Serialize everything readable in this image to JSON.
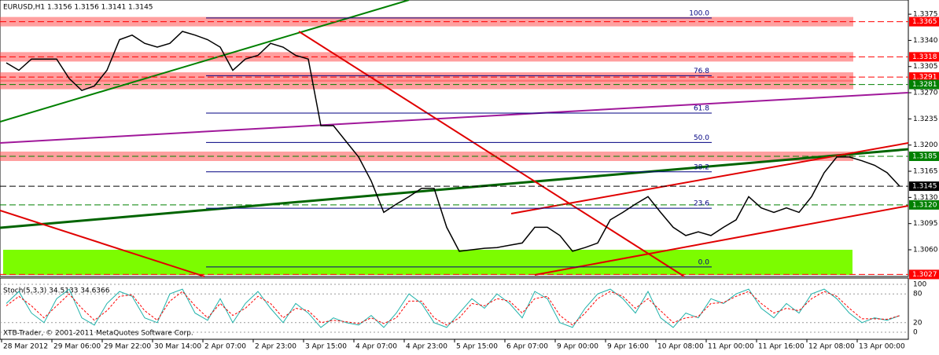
{
  "chart_data": {
    "type": "line",
    "title": "EURUSD,H1  1.3156 1.3156 1.3141 1.3145",
    "copyright": "XTB-Trader, © 2001-2011 MetaQuotes Software Corp.",
    "x_labels": [
      "28 Mar 2012",
      "29 Mar 06:00",
      "29 Mar 22:00",
      "30 Mar 14:00",
      "2 Apr 07:00",
      "2 Apr 23:00",
      "3 Apr 15:00",
      "4 Apr 07:00",
      "4 Apr 23:00",
      "5 Apr 15:00",
      "6 Apr 07:00",
      "9 Apr 00:00",
      "9 Apr 16:00",
      "10 Apr 08:00",
      "11 Apr 00:00",
      "11 Apr 16:00",
      "12 Apr 08:00",
      "13 Apr 00:00"
    ],
    "series": [
      {
        "name": "EURUSD",
        "color": "#000000",
        "values": [
          1.331,
          1.33,
          1.3315,
          1.3315,
          1.3315,
          1.3289,
          1.3273,
          1.3279,
          1.33,
          1.3341,
          1.3347,
          1.3336,
          1.3331,
          1.3336,
          1.3352,
          1.3347,
          1.3341,
          1.3331,
          1.33,
          1.3315,
          1.332,
          1.3336,
          1.3331,
          1.332,
          1.3315,
          1.3226,
          1.3226,
          1.3205,
          1.3184,
          1.3152,
          1.311,
          1.3121,
          1.3131,
          1.3142,
          1.3142,
          1.309,
          1.3058,
          1.306,
          1.3062,
          1.3063,
          1.3066,
          1.3069,
          1.309,
          1.309,
          1.3079,
          1.3058,
          1.3063,
          1.3069,
          1.31,
          1.311,
          1.3121,
          1.3131,
          1.311,
          1.309,
          1.3079,
          1.3084,
          1.3079,
          1.309,
          1.31,
          1.3131,
          1.3116,
          1.311,
          1.3116,
          1.311,
          1.3131,
          1.3163,
          1.3184,
          1.3184,
          1.3179,
          1.3173,
          1.3163,
          1.3145
        ]
      }
    ],
    "ylim": [
      1.30243,
      1.3394
    ],
    "yticks": [
      1.3375,
      {
        "value": 1.334,
        "label": "1.3340"
      },
      1.3305,
      {
        "value": 1.327,
        "label": "1.3270"
      },
      1.3235,
      {
        "value": 1.32,
        "label": "1.3200"
      },
      1.3165,
      {
        "value": 1.313,
        "label": "1.3130"
      },
      1.3095,
      {
        "value": 1.306,
        "label": "1.3060"
      }
    ],
    "levels": [
      {
        "value": 1.3365,
        "label": "1.3365",
        "color": "#ff0000"
      },
      {
        "value": 1.3318,
        "label": "1.3318",
        "color": "#ff0000"
      },
      {
        "value": 1.3291,
        "label": "1.3291",
        "color": "#ff0000"
      },
      {
        "value": 1.3281,
        "label": "1.3281",
        "color": "#008000"
      },
      {
        "value": 1.3185,
        "label": "1.3185",
        "color": "#008000"
      },
      {
        "value": 1.3145,
        "label": "1.3145",
        "color": "#000000"
      },
      {
        "value": 1.312,
        "label": "1.3120",
        "color": "#008000"
      },
      {
        "value": 1.3027,
        "label": "1.3027",
        "color": "#ff0000"
      }
    ],
    "fib_low": 1.3037,
    "fib_high": 1.337,
    "fib_levels": [
      {
        "value": 100,
        "label": "100.0"
      },
      76.8,
      61.8,
      {
        "value": 50,
        "label": "50.0"
      },
      38.2,
      23.6,
      {
        "value": 0,
        "label": "0.0"
      }
    ],
    "stoch": {
      "title": "Stoch(5,3,3) 34.5133 34.6366",
      "ylim": [
        0,
        100
      ],
      "yticks": [
        100,
        80,
        20,
        0
      ],
      "series": [
        {
          "name": "main",
          "color": "#20b2aa",
          "values": [
            60,
            85,
            40,
            20,
            70,
            90,
            30,
            15,
            60,
            85,
            75,
            30,
            20,
            80,
            90,
            40,
            25,
            70,
            20,
            60,
            85,
            50,
            20,
            60,
            40,
            10,
            30,
            20,
            15,
            35,
            10,
            40,
            80,
            60,
            20,
            10,
            40,
            70,
            50,
            80,
            60,
            30,
            85,
            70,
            20,
            10,
            50,
            80,
            90,
            70,
            40,
            85,
            30,
            10,
            40,
            30,
            70,
            60,
            80,
            90,
            50,
            30,
            60,
            40,
            80,
            90,
            70,
            40,
            20,
            30,
            25,
            34.5133
          ]
        },
        {
          "name": "signal",
          "color": "#ff0000",
          "values": [
            55,
            75,
            55,
            30,
            55,
            80,
            50,
            25,
            45,
            75,
            78,
            45,
            25,
            65,
            85,
            55,
            30,
            60,
            35,
            50,
            75,
            60,
            30,
            50,
            45,
            20,
            25,
            22,
            18,
            30,
            18,
            30,
            65,
            65,
            30,
            15,
            30,
            60,
            55,
            70,
            65,
            40,
            70,
            75,
            35,
            15,
            40,
            70,
            85,
            75,
            50,
            70,
            45,
            20,
            30,
            33,
            60,
            62,
            75,
            85,
            60,
            40,
            50,
            45,
            70,
            85,
            75,
            50,
            28,
            28,
            27,
            34.6366
          ]
        }
      ]
    }
  }
}
